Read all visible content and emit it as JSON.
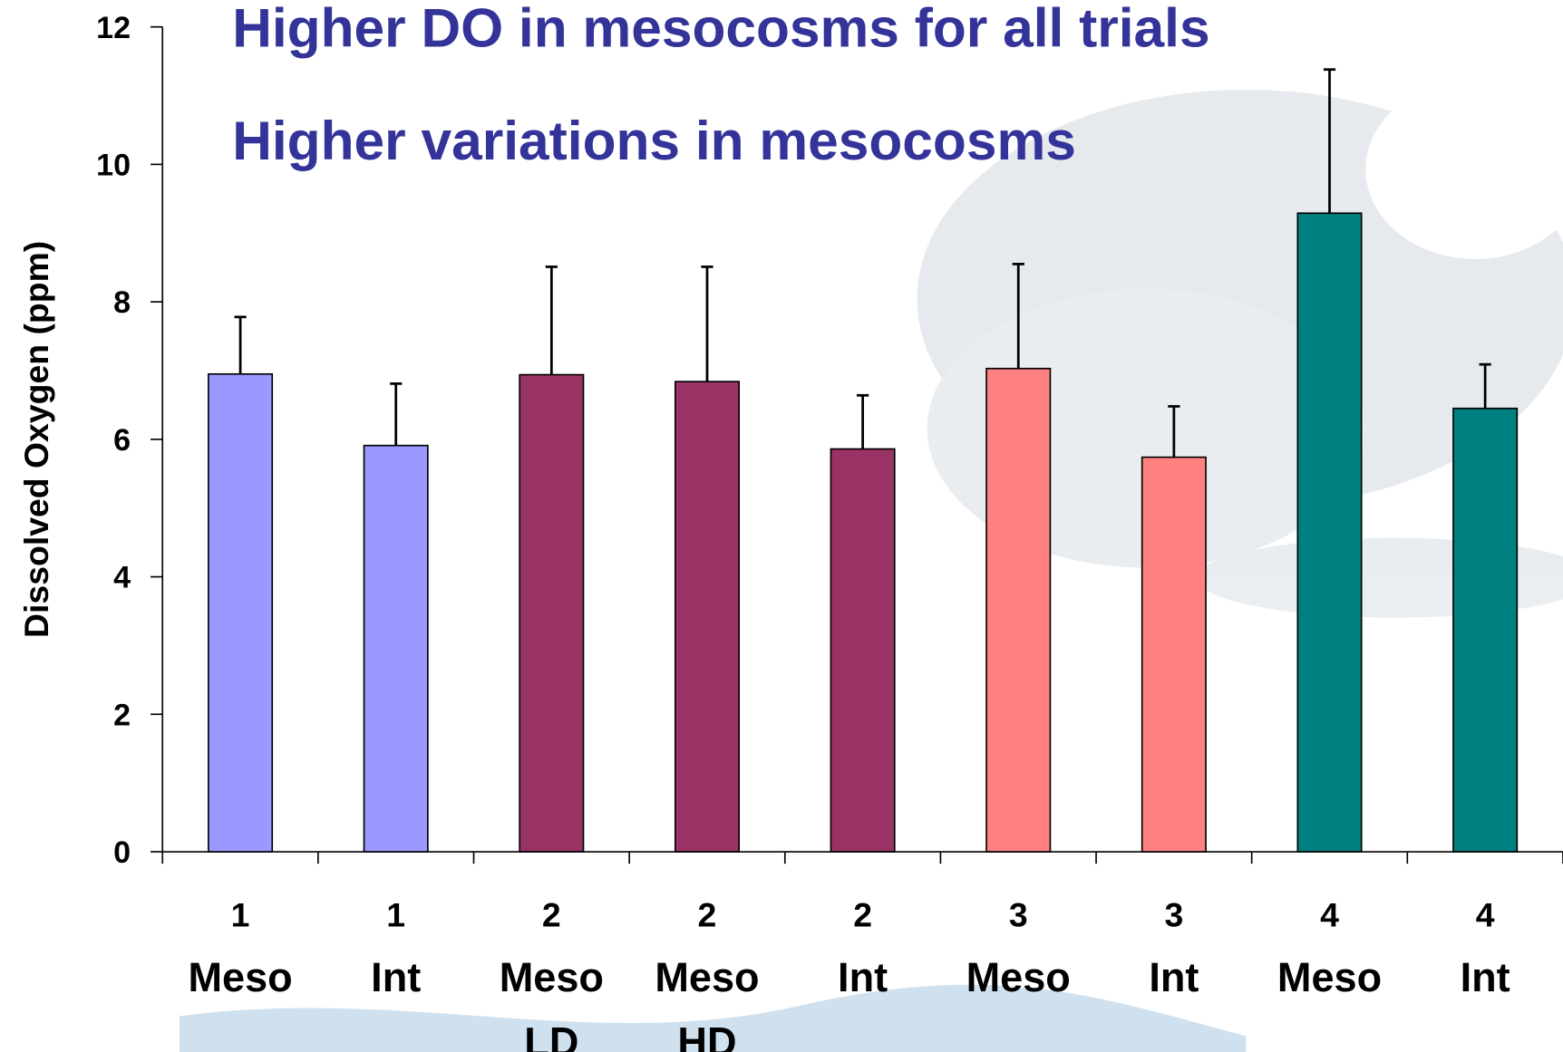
{
  "chart_data": {
    "type": "bar",
    "annotations": [
      "Higher DO in mesocosms for all trials",
      "Higher variations in mesocosms"
    ],
    "y_label": "Dissolved Oxygen (ppm)",
    "categories": [
      [
        "1",
        "Meso"
      ],
      [
        "1",
        "Int"
      ],
      [
        "2",
        "Meso",
        "LD"
      ],
      [
        "2",
        "Meso",
        "HD"
      ],
      [
        "2",
        "Int"
      ],
      [
        "3",
        "Meso"
      ],
      [
        "3",
        "Int"
      ],
      [
        "4",
        "Meso"
      ],
      [
        "4",
        "Int"
      ]
    ],
    "values": [
      6.95,
      5.91,
      6.94,
      6.84,
      5.86,
      7.03,
      5.74,
      9.29,
      6.45
    ],
    "errors": [
      0.83,
      0.9,
      1.57,
      1.67,
      0.78,
      1.52,
      0.74,
      2.09,
      0.64
    ],
    "colors": [
      "#9999ff",
      "#9999ff",
      "#993366",
      "#993366",
      "#993366",
      "#ff8080",
      "#ff8080",
      "#008080",
      "#008080"
    ],
    "ylim": [
      0,
      12
    ],
    "yticks": [
      0,
      2,
      4,
      6,
      8,
      10,
      12
    ]
  }
}
